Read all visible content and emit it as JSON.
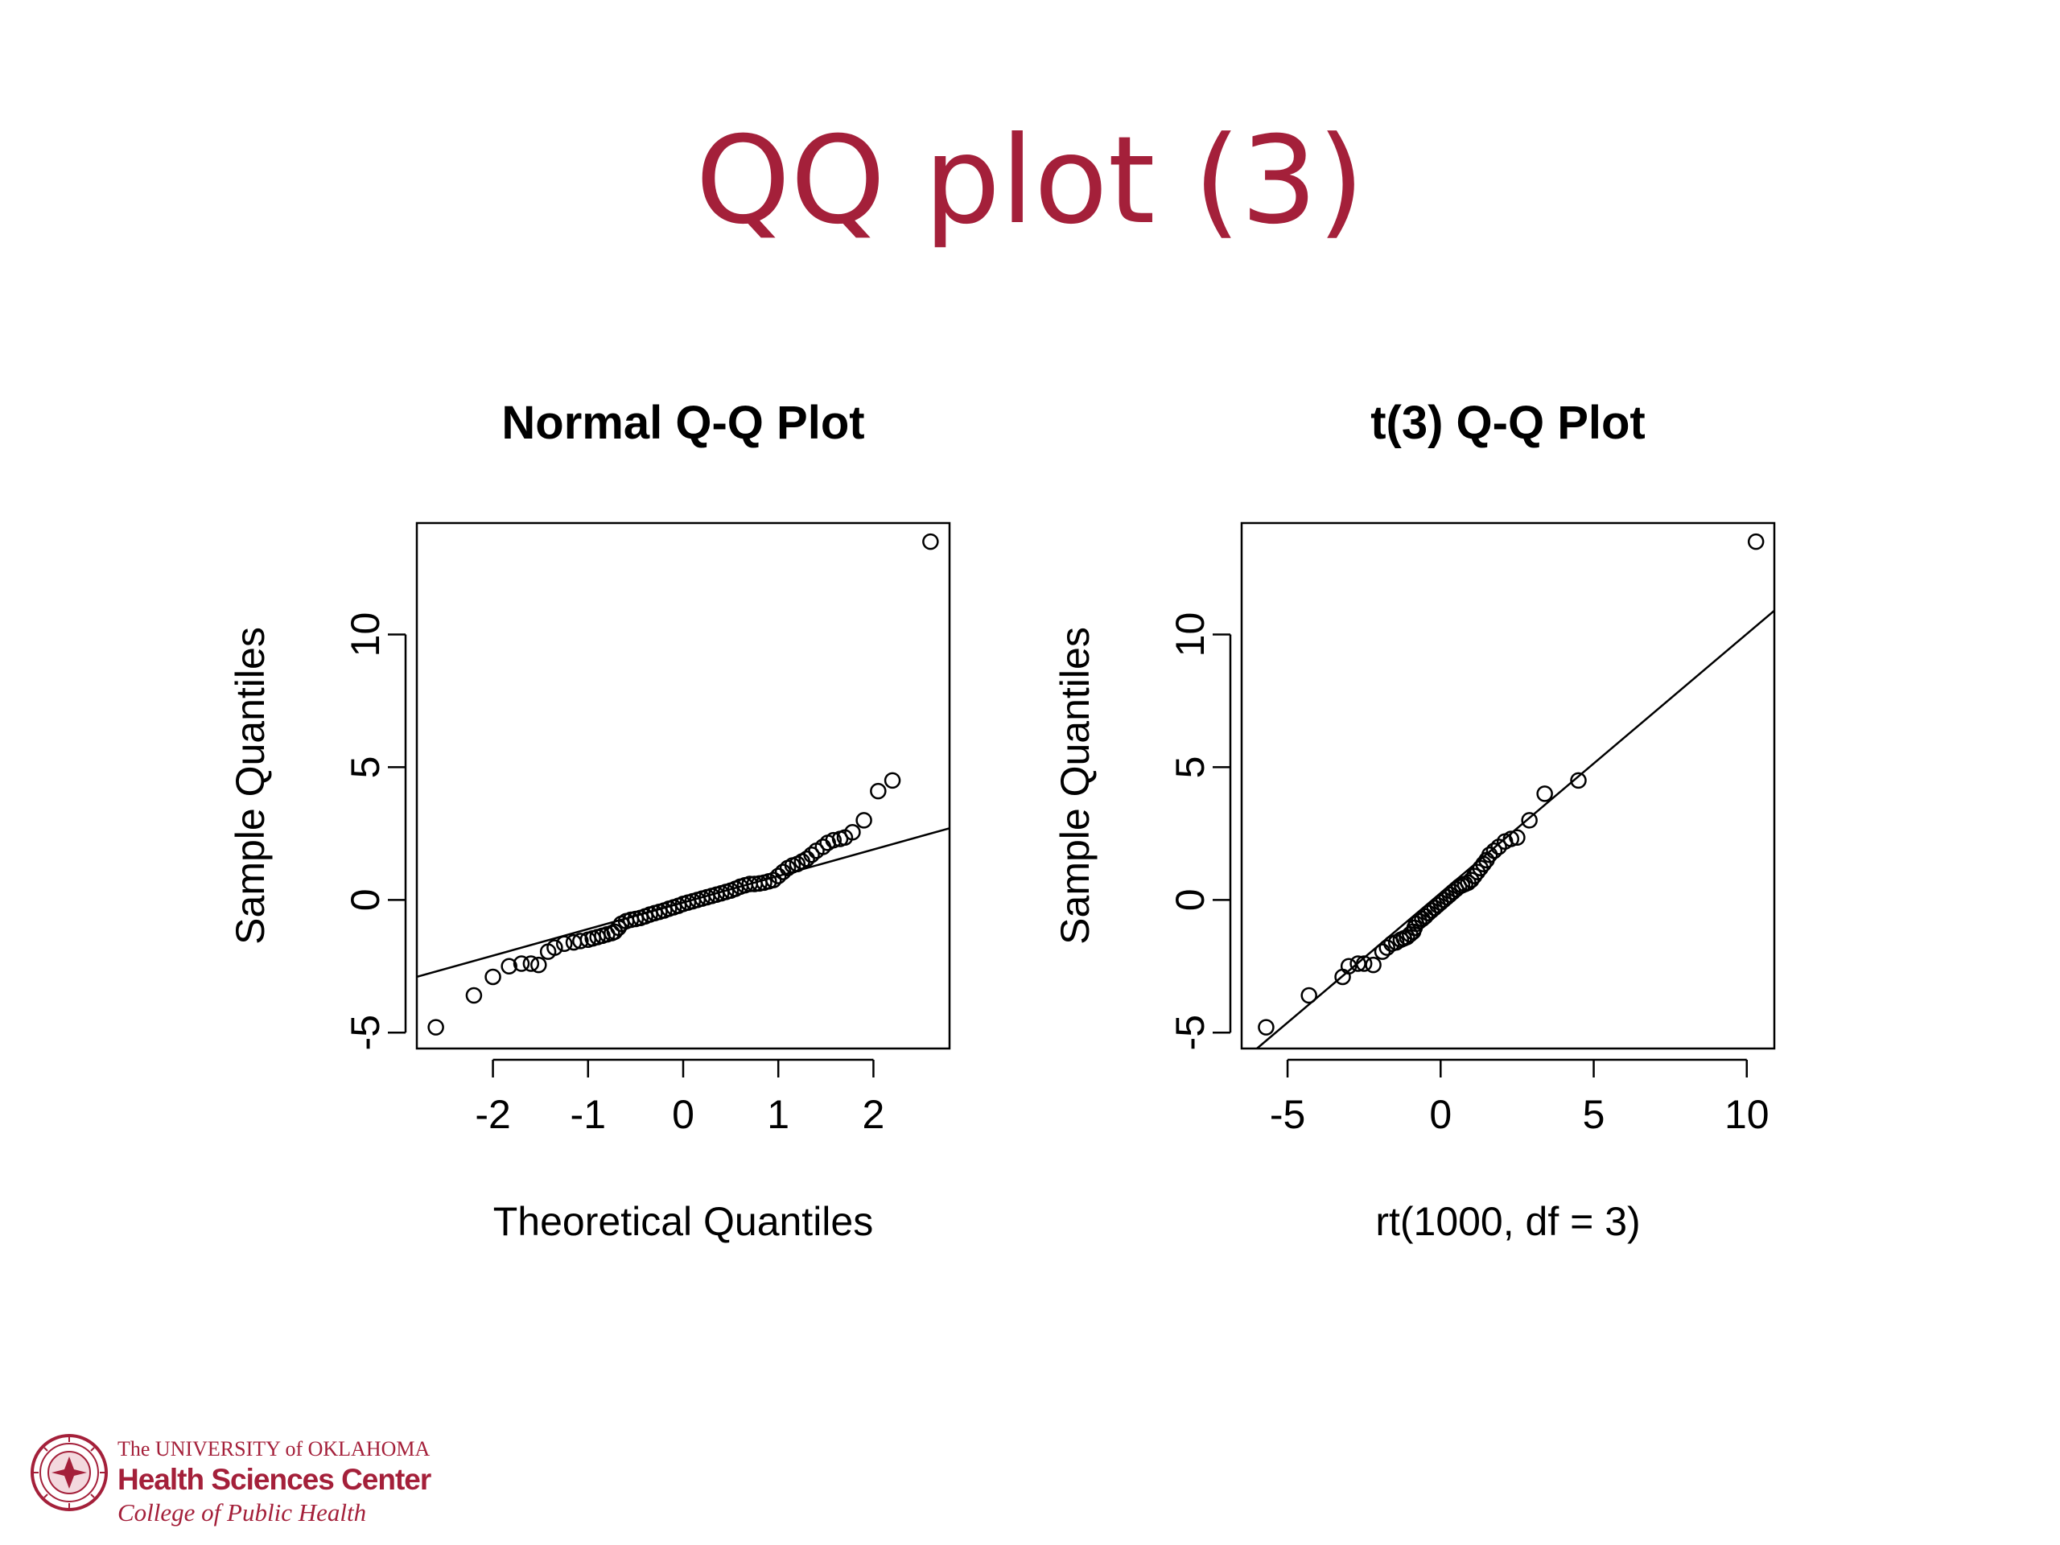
{
  "slide": {
    "title": "QQ plot (3)"
  },
  "colors": {
    "title": "#a4203a",
    "logo": "#a4203a",
    "points": "#000000"
  },
  "logo": {
    "line1": "The UNIVERSITY of OKLAHOMA",
    "line2": "Health Sciences Center",
    "line3": "College of Public Health",
    "seal_icon": "university-seal-icon"
  },
  "chart_data": [
    {
      "type": "scatter",
      "title": "Normal Q-Q Plot",
      "xlabel": "Theoretical Quantiles",
      "ylabel": "Sample Quantiles",
      "xlim": [
        -2.8,
        2.8
      ],
      "ylim": [
        -5.6,
        14.2
      ],
      "xticks": [
        -2,
        -1,
        0,
        1,
        2
      ],
      "yticks": [
        -5,
        0,
        5,
        10
      ],
      "reference_line": [
        [
          -2.8,
          -2.9
        ],
        [
          2.8,
          2.7
        ]
      ],
      "points": [
        [
          -2.6,
          -4.8
        ],
        [
          -2.2,
          -3.6
        ],
        [
          -2.0,
          -2.9
        ],
        [
          -1.83,
          -2.5
        ],
        [
          -1.7,
          -2.4
        ],
        [
          -1.6,
          -2.4
        ],
        [
          -1.52,
          -2.45
        ],
        [
          -1.42,
          -1.95
        ],
        [
          -1.35,
          -1.8
        ],
        [
          -1.25,
          -1.65
        ],
        [
          -1.15,
          -1.6
        ],
        [
          -1.08,
          -1.55
        ],
        [
          -1.0,
          -1.5
        ],
        [
          -0.95,
          -1.45
        ],
        [
          -0.9,
          -1.4
        ],
        [
          -0.85,
          -1.35
        ],
        [
          -0.8,
          -1.3
        ],
        [
          -0.75,
          -1.25
        ],
        [
          -0.72,
          -1.2
        ],
        [
          -0.68,
          -1.05
        ],
        [
          -0.65,
          -0.9
        ],
        [
          -0.6,
          -0.8
        ],
        [
          -0.55,
          -0.75
        ],
        [
          -0.5,
          -0.72
        ],
        [
          -0.45,
          -0.68
        ],
        [
          -0.4,
          -0.62
        ],
        [
          -0.35,
          -0.55
        ],
        [
          -0.3,
          -0.5
        ],
        [
          -0.25,
          -0.45
        ],
        [
          -0.2,
          -0.4
        ],
        [
          -0.15,
          -0.33
        ],
        [
          -0.1,
          -0.28
        ],
        [
          -0.05,
          -0.22
        ],
        [
          0.0,
          -0.15
        ],
        [
          0.05,
          -0.1
        ],
        [
          0.1,
          -0.05
        ],
        [
          0.15,
          0.0
        ],
        [
          0.2,
          0.05
        ],
        [
          0.25,
          0.1
        ],
        [
          0.3,
          0.15
        ],
        [
          0.35,
          0.2
        ],
        [
          0.4,
          0.25
        ],
        [
          0.45,
          0.3
        ],
        [
          0.5,
          0.35
        ],
        [
          0.55,
          0.42
        ],
        [
          0.6,
          0.5
        ],
        [
          0.65,
          0.55
        ],
        [
          0.7,
          0.6
        ],
        [
          0.75,
          0.6
        ],
        [
          0.8,
          0.62
        ],
        [
          0.85,
          0.65
        ],
        [
          0.9,
          0.7
        ],
        [
          0.95,
          0.75
        ],
        [
          1.0,
          0.9
        ],
        [
          1.05,
          1.05
        ],
        [
          1.1,
          1.2
        ],
        [
          1.15,
          1.3
        ],
        [
          1.2,
          1.35
        ],
        [
          1.25,
          1.45
        ],
        [
          1.3,
          1.55
        ],
        [
          1.35,
          1.7
        ],
        [
          1.4,
          1.85
        ],
        [
          1.47,
          2.0
        ],
        [
          1.52,
          2.15
        ],
        [
          1.58,
          2.25
        ],
        [
          1.65,
          2.3
        ],
        [
          1.7,
          2.35
        ],
        [
          1.78,
          2.55
        ],
        [
          1.9,
          3.0
        ],
        [
          2.05,
          4.1
        ],
        [
          2.2,
          4.5
        ],
        [
          2.6,
          13.5
        ]
      ]
    },
    {
      "type": "scatter",
      "title": "t(3) Q-Q Plot",
      "xlabel": "rt(1000, df = 3)",
      "ylabel": "Sample Quantiles",
      "xlim": [
        -6.5,
        10.9
      ],
      "ylim": [
        -5.6,
        14.2
      ],
      "xticks": [
        -5,
        0,
        5,
        10
      ],
      "yticks": [
        -5,
        0,
        5,
        10
      ],
      "reference_line": [
        [
          -6.0,
          -5.6
        ],
        [
          10.9,
          10.9
        ]
      ],
      "points": [
        [
          -5.7,
          -4.8
        ],
        [
          -4.3,
          -3.6
        ],
        [
          -3.2,
          -2.9
        ],
        [
          -3.0,
          -2.5
        ],
        [
          -2.7,
          -2.4
        ],
        [
          -2.5,
          -2.4
        ],
        [
          -2.2,
          -2.45
        ],
        [
          -1.9,
          -1.95
        ],
        [
          -1.75,
          -1.8
        ],
        [
          -1.6,
          -1.65
        ],
        [
          -1.45,
          -1.6
        ],
        [
          -1.3,
          -1.5
        ],
        [
          -1.2,
          -1.45
        ],
        [
          -1.1,
          -1.4
        ],
        [
          -1.0,
          -1.3
        ],
        [
          -0.9,
          -1.2
        ],
        [
          -0.85,
          -1.05
        ],
        [
          -0.8,
          -0.9
        ],
        [
          -0.7,
          -0.8
        ],
        [
          -0.6,
          -0.72
        ],
        [
          -0.5,
          -0.62
        ],
        [
          -0.4,
          -0.5
        ],
        [
          -0.3,
          -0.4
        ],
        [
          -0.2,
          -0.3
        ],
        [
          -0.1,
          -0.2
        ],
        [
          0.0,
          -0.1
        ],
        [
          0.1,
          0.0
        ],
        [
          0.2,
          0.1
        ],
        [
          0.3,
          0.2
        ],
        [
          0.4,
          0.3
        ],
        [
          0.5,
          0.4
        ],
        [
          0.6,
          0.5
        ],
        [
          0.7,
          0.55
        ],
        [
          0.8,
          0.6
        ],
        [
          0.9,
          0.65
        ],
        [
          1.0,
          0.75
        ],
        [
          1.1,
          0.9
        ],
        [
          1.2,
          1.05
        ],
        [
          1.3,
          1.2
        ],
        [
          1.4,
          1.35
        ],
        [
          1.5,
          1.5
        ],
        [
          1.6,
          1.7
        ],
        [
          1.75,
          1.85
        ],
        [
          1.9,
          2.0
        ],
        [
          2.1,
          2.2
        ],
        [
          2.3,
          2.3
        ],
        [
          2.5,
          2.35
        ],
        [
          2.9,
          3.0
        ],
        [
          3.4,
          4.0
        ],
        [
          4.5,
          4.5
        ],
        [
          10.3,
          13.5
        ]
      ]
    }
  ]
}
